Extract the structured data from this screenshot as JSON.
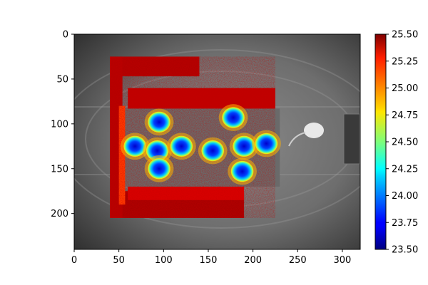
{
  "chart_data": {
    "type": "heatmap",
    "title": "",
    "xlabel": "",
    "ylabel": "",
    "xlim": [
      0,
      320
    ],
    "ylim": [
      240,
      0
    ],
    "xticks": [
      0,
      50,
      100,
      150,
      200,
      250,
      300
    ],
    "yticks": [
      0,
      50,
      100,
      150,
      200
    ],
    "colorbar": {
      "colormap": "jet",
      "range": [
        23.5,
        25.5
      ],
      "ticks": [
        "23.50",
        "23.75",
        "24.00",
        "24.25",
        "24.50",
        "24.75",
        "25.00",
        "25.25",
        "25.50"
      ]
    },
    "background": "grayscale infrared image",
    "overlay_region": {
      "x": [
        40,
        190
      ],
      "y": [
        25,
        205
      ]
    },
    "cold_spots": [
      {
        "x": 95,
        "y": 98,
        "value": 23.8
      },
      {
        "x": 68,
        "y": 125,
        "value": 23.8
      },
      {
        "x": 93,
        "y": 130,
        "value": 23.8
      },
      {
        "x": 120,
        "y": 125,
        "value": 23.8
      },
      {
        "x": 95,
        "y": 150,
        "value": 23.8
      },
      {
        "x": 155,
        "y": 130,
        "value": 23.8
      },
      {
        "x": 178,
        "y": 93,
        "value": 23.8
      },
      {
        "x": 190,
        "y": 125,
        "value": 23.9
      },
      {
        "x": 188,
        "y": 153,
        "value": 23.8
      },
      {
        "x": 215,
        "y": 122,
        "value": 24.0
      }
    ]
  }
}
